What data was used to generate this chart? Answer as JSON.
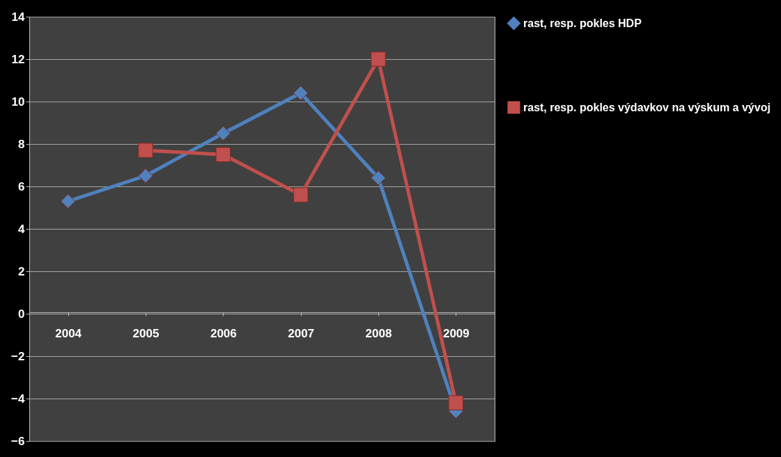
{
  "chart_data": {
    "type": "line",
    "categories": [
      "2004",
      "2005",
      "2006",
      "2007",
      "2008",
      "2009"
    ],
    "series": [
      {
        "name": "rast, resp. pokles HDP",
        "color": "#4f81bd",
        "marker": "diamond",
        "values": [
          5.3,
          6.5,
          8.5,
          10.4,
          6.4,
          -4.6
        ]
      },
      {
        "name": "rast, resp. pokles výdavkov na výskum a vývoj",
        "color": "#c0504d",
        "marker": "square",
        "values": [
          null,
          7.7,
          7.5,
          5.6,
          12.0,
          -4.2
        ]
      }
    ],
    "ylim": [
      -6,
      14
    ],
    "yticks": [
      -6,
      -4,
      -2,
      0,
      2,
      4,
      6,
      8,
      10,
      12,
      14
    ],
    "grid": "y",
    "legend": "right",
    "line_style": "solid"
  }
}
